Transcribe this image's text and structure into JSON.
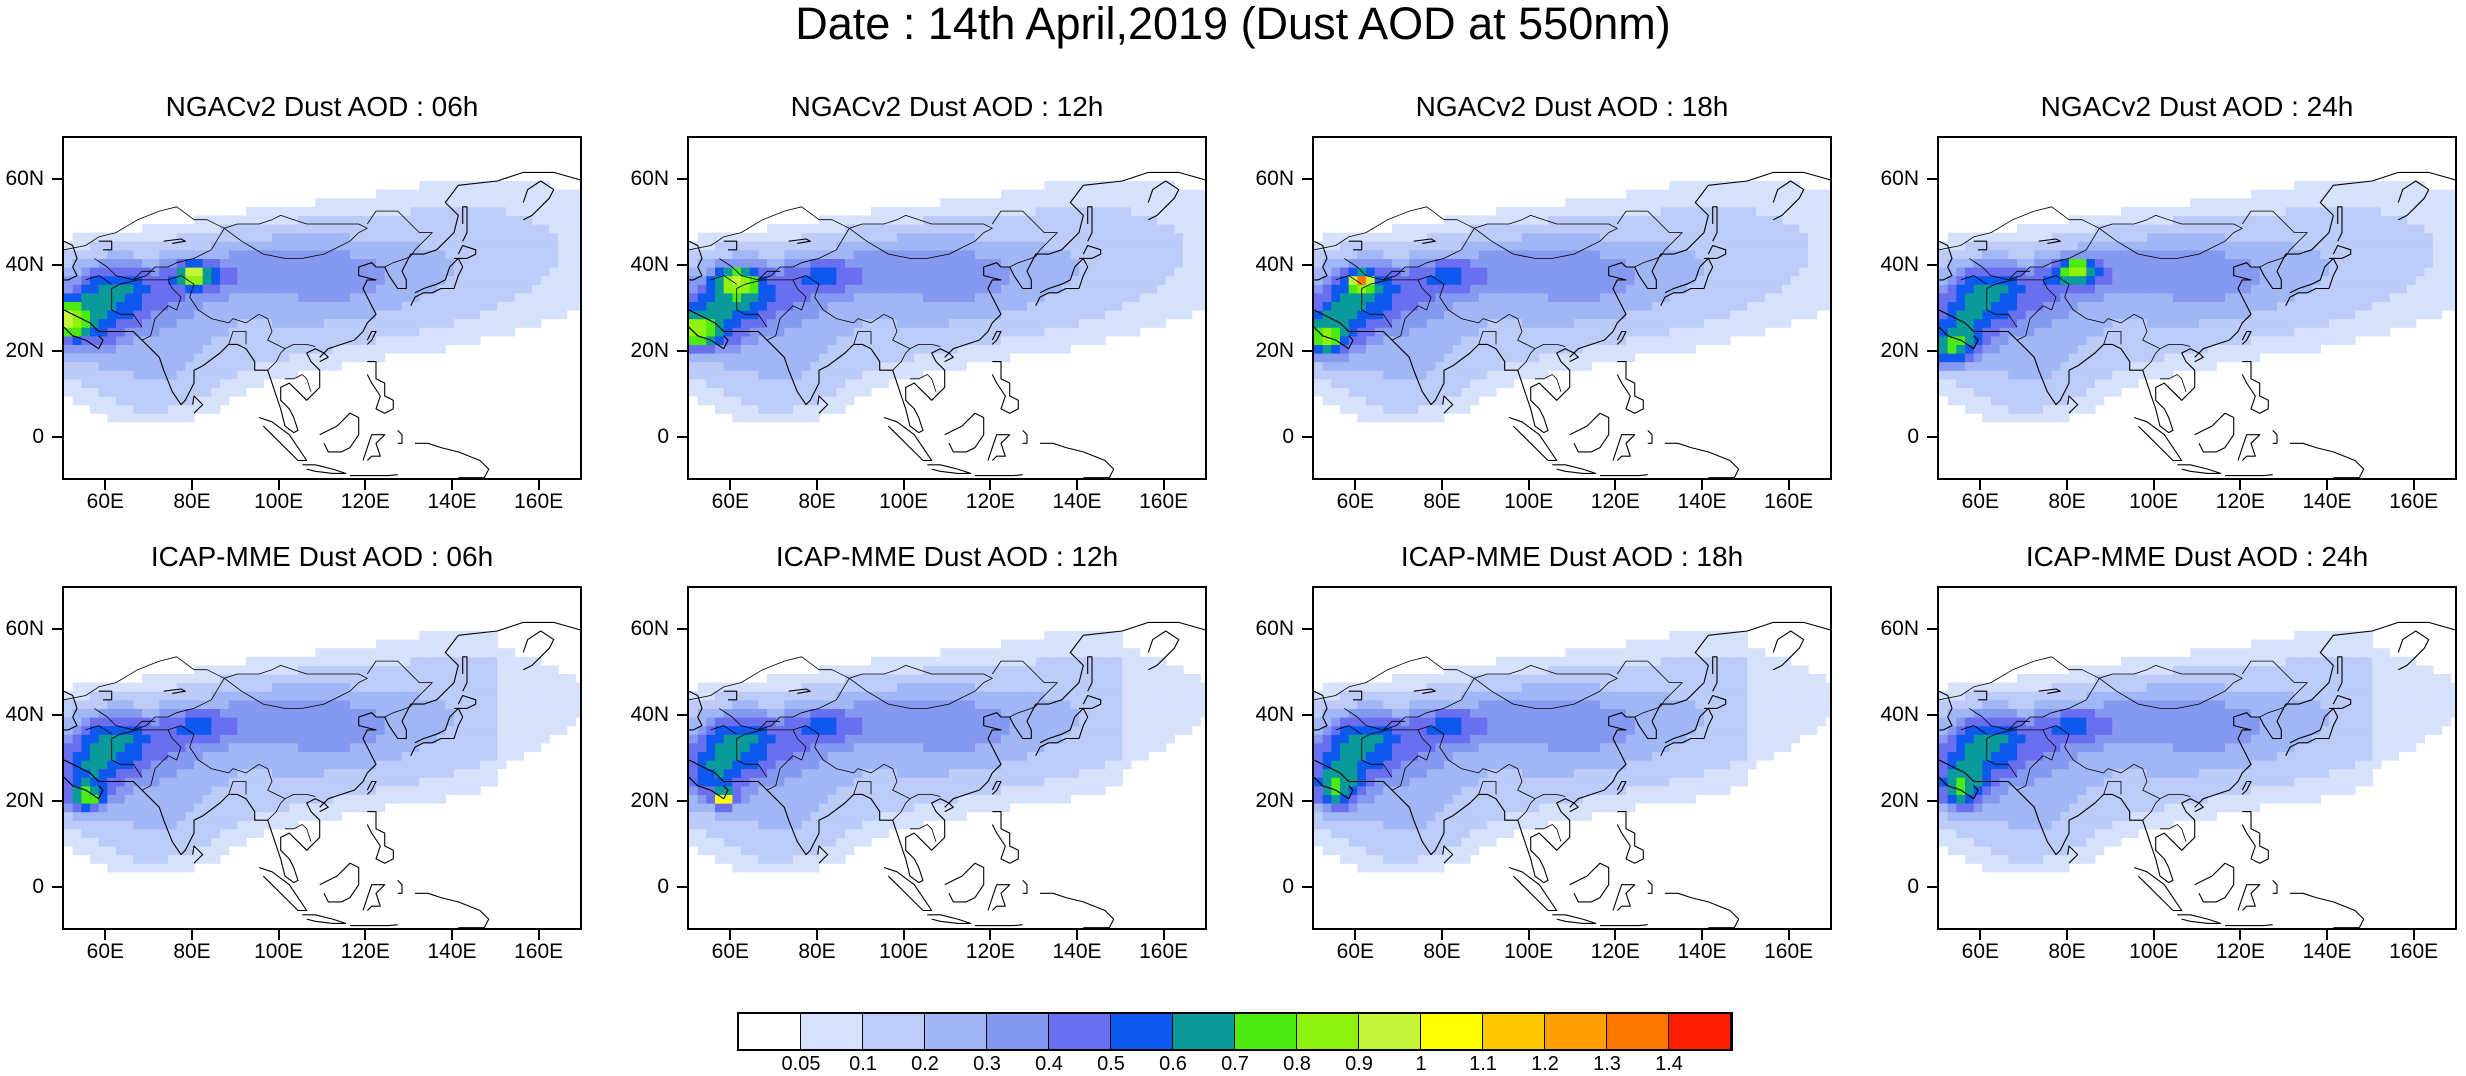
{
  "title": "Date : 14th April,2019 (Dust AOD at 550nm)",
  "panels": [
    {
      "title": "NGACv2 Dust AOD : 06h"
    },
    {
      "title": "NGACv2 Dust AOD : 12h"
    },
    {
      "title": "NGACv2 Dust AOD : 18h"
    },
    {
      "title": "NGACv2 Dust AOD : 24h"
    },
    {
      "title": "ICAP-MME Dust AOD : 06h"
    },
    {
      "title": "ICAP-MME Dust AOD : 12h"
    },
    {
      "title": "ICAP-MME Dust AOD : 18h"
    },
    {
      "title": "ICAP-MME Dust AOD : 24h"
    }
  ],
  "axes": {
    "lat_labels": [
      "60N",
      "40N",
      "20N",
      "0"
    ],
    "lon_labels": [
      "60E",
      "80E",
      "100E",
      "120E",
      "140E",
      "160E"
    ]
  },
  "colorbar": {
    "labels": [
      "0.05",
      "0.1",
      "0.2",
      "0.3",
      "0.4",
      "0.5",
      "0.6",
      "0.7",
      "0.8",
      "0.9",
      "1",
      "1.1",
      "1.2",
      "1.3",
      "1.4"
    ],
    "colors": [
      "#ffffff",
      "#d6e2fb",
      "#bccbf8",
      "#a0b6f5",
      "#8599f1",
      "#6a6ff0",
      "#0f58ee",
      "#0b9a9a",
      "#4aea12",
      "#8ef20e",
      "#c4f53a",
      "#ffff00",
      "#ffc800",
      "#ffa000",
      "#ff7600",
      "#ff1e00"
    ]
  }
}
